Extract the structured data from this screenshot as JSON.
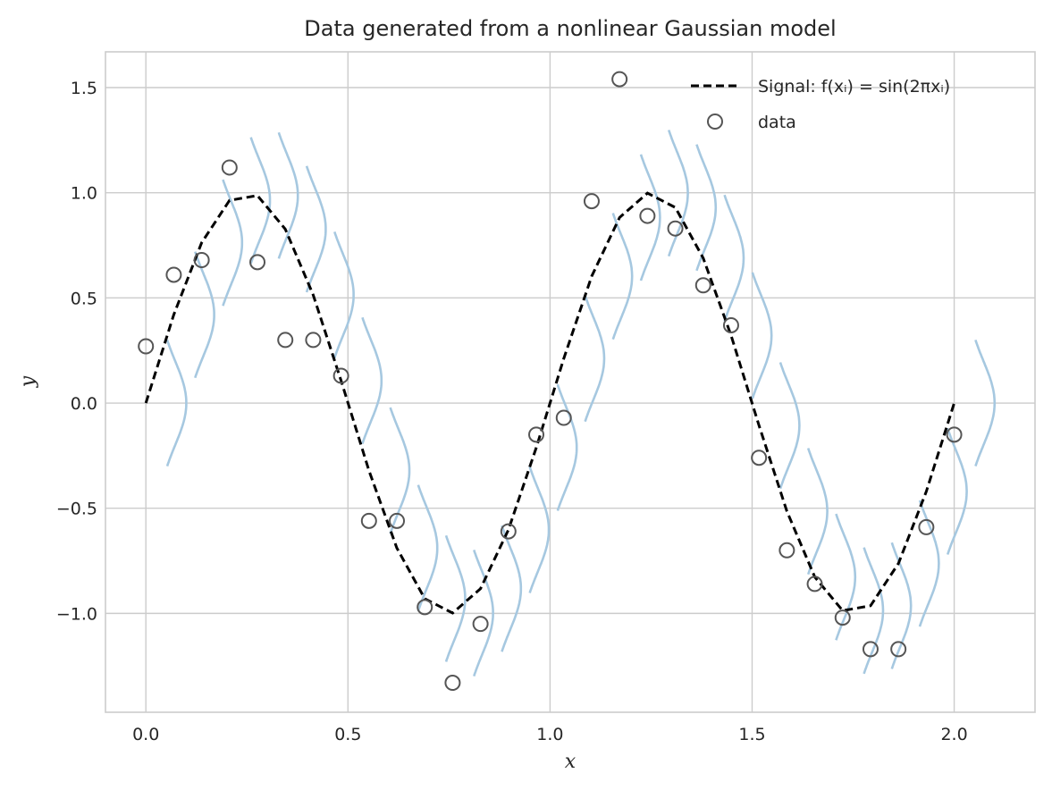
{
  "chart_data": {
    "type": "line",
    "title": "Data generated from a nonlinear Gaussian model",
    "xlabel": "x",
    "ylabel": "y",
    "xlim": [
      -0.1,
      2.2
    ],
    "ylim": [
      -1.47,
      1.67
    ],
    "x_ticks": [
      0.0,
      0.5,
      1.0,
      1.5,
      2.0
    ],
    "x_tick_labels": [
      "0.0",
      "0.5",
      "1.0",
      "1.5",
      "2.0"
    ],
    "y_ticks": [
      -1.0,
      -0.5,
      0.0,
      0.5,
      1.0,
      1.5
    ],
    "y_tick_labels": [
      "−1.0",
      "−0.5",
      "0.0",
      "0.5",
      "1.0",
      "1.5"
    ],
    "grid": true,
    "legend_position": "top-right",
    "legend": [
      {
        "label": "Signal: f(xᵢ) = sin(2πxᵢ)",
        "kind": "dashed-line",
        "color": "#000000"
      },
      {
        "label": "data",
        "kind": "open-circle",
        "color": "#555555"
      }
    ],
    "signal": {
      "name": "Signal: f(xᵢ) = sin(2πxᵢ)",
      "style": "dashed",
      "color": "#000000",
      "x": [
        0.0,
        0.069,
        0.138,
        0.207,
        0.276,
        0.345,
        0.414,
        0.483,
        0.552,
        0.621,
        0.69,
        0.759,
        0.828,
        0.897,
        0.966,
        1.034,
        1.103,
        1.172,
        1.241,
        1.31,
        1.379,
        1.448,
        1.517,
        1.586,
        1.655,
        1.724,
        1.793,
        1.862,
        1.931,
        2.0
      ]
    },
    "data": {
      "name": "data",
      "marker": "open-circle",
      "color": "#555555",
      "x": [
        0.0,
        0.069,
        0.138,
        0.207,
        0.276,
        0.345,
        0.414,
        0.483,
        0.552,
        0.621,
        0.69,
        0.759,
        0.828,
        0.897,
        0.966,
        1.034,
        1.103,
        1.172,
        1.241,
        1.31,
        1.379,
        1.448,
        1.517,
        1.586,
        1.655,
        1.724,
        1.793,
        1.862,
        1.931,
        2.0
      ],
      "y": [
        0.27,
        0.61,
        0.68,
        1.12,
        0.67,
        0.3,
        0.3,
        0.13,
        -0.56,
        -0.56,
        -0.97,
        -1.33,
        -1.05,
        -0.61,
        -0.15,
        -0.07,
        0.96,
        1.54,
        0.89,
        0.83,
        0.56,
        0.37,
        -0.26,
        -0.7,
        -0.86,
        -1.02,
        -1.17,
        -1.17,
        -0.59,
        -0.15
      ]
    },
    "noise_densities": {
      "description_role": "Gaussian likelihood curves drawn at each x",
      "color": "#a6c8e0",
      "sigma": 0.2,
      "peak_width_x": 0.07
    }
  }
}
